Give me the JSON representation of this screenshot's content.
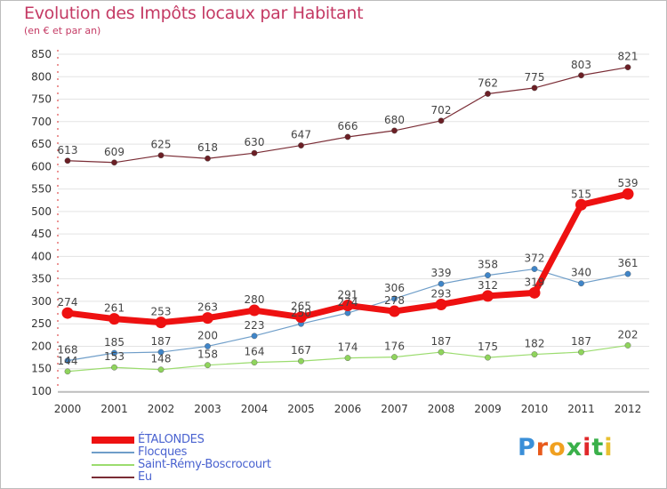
{
  "title": "Evolution des Impôts locaux par Habitant",
  "subtitle": "(en € et par an)",
  "logo": {
    "text": "Proxiti",
    "letter_colors": [
      "#3a8fd8",
      "#e85a1c",
      "#f0a020",
      "#3ab04a",
      "#e0282a",
      "#3ab04a",
      "#e8c030"
    ]
  },
  "chart_data": {
    "type": "line",
    "title": "Evolution des Impôts locaux par Habitant",
    "subtitle": "(en € et par an)",
    "xlabel": "",
    "ylabel": "",
    "x": [
      "2000",
      "2001",
      "2002",
      "2003",
      "2004",
      "2005",
      "2006",
      "2007",
      "2008",
      "2009",
      "2010",
      "2011",
      "2012"
    ],
    "ylim": [
      100,
      850
    ],
    "yticks": [
      100,
      150,
      200,
      250,
      300,
      350,
      400,
      450,
      500,
      550,
      600,
      650,
      700,
      750,
      800,
      850
    ],
    "grid": "horizontal",
    "legend_position": "bottom-left",
    "series": [
      {
        "name": "ÉTALONDES",
        "color": "#ee1111",
        "marker_color": "#ee1111",
        "values": [
          274,
          261,
          253,
          263,
          280,
          265,
          291,
          278,
          293,
          312,
          319,
          515,
          539
        ]
      },
      {
        "name": "Flocques",
        "color": "#6f9ec9",
        "marker_color": "#3f85c8",
        "values": [
          168,
          185,
          187,
          200,
          223,
          250,
          274,
          306,
          339,
          358,
          372,
          340,
          361
        ]
      },
      {
        "name": "Saint-Rémy-Boscrocourt",
        "color": "#9bdc6e",
        "marker_color": "#8fd45c",
        "values": [
          144,
          153,
          148,
          158,
          164,
          167,
          174,
          176,
          187,
          175,
          182,
          187,
          202
        ]
      },
      {
        "name": "Eu",
        "color": "#7a2c35",
        "marker_color": "#6b1f25",
        "values": [
          613,
          609,
          625,
          618,
          630,
          647,
          666,
          680,
          702,
          762,
          775,
          803,
          821
        ]
      }
    ]
  }
}
